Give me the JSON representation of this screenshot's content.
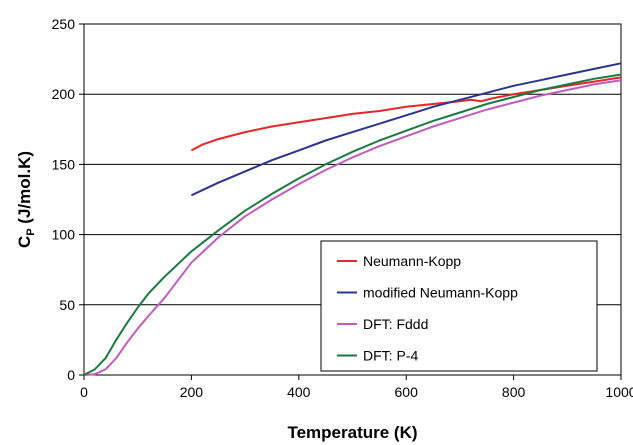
{
  "chart_data": {
    "type": "line",
    "title": "",
    "xlabel": "Temperature (K)",
    "ylabel_main": "C",
    "ylabel_sub": "P",
    "ylabel_rest": " (J/mol.K)",
    "xlim": [
      0,
      1000
    ],
    "ylim": [
      0,
      250
    ],
    "xticks": [
      "0",
      "200",
      "400",
      "600",
      "800",
      "1000"
    ],
    "yticks": [
      "0",
      "50",
      "100",
      "150",
      "200",
      "250"
    ],
    "grid": "horizontal",
    "legend_position": "bottom-right",
    "series": [
      {
        "name": "Neumann-Kopp",
        "color": "#e8262a",
        "x": [
          200,
          220,
          250,
          300,
          350,
          400,
          450,
          500,
          550,
          600,
          650,
          700,
          720,
          740,
          760,
          800,
          850,
          900,
          950,
          1000
        ],
        "y": [
          160,
          164,
          168,
          173,
          177,
          180,
          183,
          186,
          188,
          191,
          193,
          195,
          196,
          195,
          197,
          200,
          203,
          206,
          209,
          212
        ]
      },
      {
        "name": "modified Neumann-Kopp",
        "color": "#2b3590",
        "x": [
          200,
          250,
          300,
          350,
          400,
          450,
          500,
          550,
          600,
          650,
          700,
          750,
          800,
          850,
          900,
          950,
          1000
        ],
        "y": [
          128,
          137,
          145,
          153,
          160,
          167,
          173,
          179,
          185,
          191,
          196,
          201,
          206,
          210,
          214,
          218,
          222
        ]
      },
      {
        "name": "DFT: Fddd",
        "color": "#c05cc0",
        "x": [
          0,
          20,
          40,
          60,
          80,
          100,
          120,
          150,
          200,
          250,
          300,
          350,
          400,
          450,
          500,
          550,
          600,
          650,
          700,
          750,
          800,
          850,
          900,
          950,
          1000
        ],
        "y": [
          0,
          0.5,
          4,
          12,
          23,
          33,
          42,
          55,
          80,
          98,
          113,
          125,
          136,
          146,
          155,
          163,
          170,
          177,
          183,
          189,
          194,
          199,
          203,
          207,
          210
        ]
      },
      {
        "name": "DFT: P-4",
        "color": "#1c7a40",
        "x": [
          0,
          20,
          40,
          60,
          80,
          100,
          120,
          150,
          200,
          250,
          300,
          350,
          400,
          450,
          500,
          550,
          600,
          650,
          700,
          750,
          800,
          850,
          900,
          950,
          1000
        ],
        "y": [
          0,
          4,
          12,
          25,
          37,
          48,
          58,
          70,
          88,
          103,
          117,
          129,
          140,
          150,
          159,
          167,
          174,
          181,
          187,
          193,
          198,
          203,
          207,
          211,
          214
        ]
      }
    ]
  }
}
